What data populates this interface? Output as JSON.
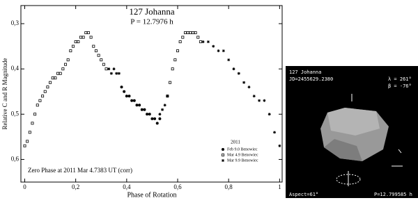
{
  "chart_data": {
    "type": "scatter",
    "title": "127 Johanna",
    "subtitle": "P = 12.7976 h",
    "x_label": "Phase of Rotation",
    "y_label": "Relative C and R Magnitude",
    "annotation": "Zero Phase at 2011 Mar 4.7383 UT (corr)",
    "legend_title": "2011",
    "legend_position": "lower right",
    "invert_y": true,
    "xlim": [
      -0.015,
      1.01
    ],
    "ylim": [
      0.26,
      0.65
    ],
    "xticks": [
      0,
      {
        "value": 0.2,
        "label": "0,2"
      },
      {
        "value": 0.4,
        "label": "0,4"
      },
      {
        "value": 0.6,
        "label": "0,6"
      },
      {
        "value": 0.8,
        "label": "0,8"
      },
      1
    ],
    "yticks": [
      {
        "value": 0.3,
        "label": "0,3"
      },
      {
        "value": 0.4,
        "label": "0,4"
      },
      {
        "value": 0.5,
        "label": "0,5"
      },
      {
        "value": 0.6,
        "label": "0,6"
      }
    ],
    "series": [
      {
        "name": "Feb 9.0 Benowiec",
        "marker": "circle",
        "color": "#000000",
        "x": [
          0.38,
          0.39,
          0.4,
          0.41,
          0.42,
          0.43,
          0.44,
          0.45,
          0.46,
          0.47,
          0.48,
          0.49,
          0.5,
          0.51,
          0.52,
          0.53
        ],
        "values": [
          0.44,
          0.45,
          0.46,
          0.46,
          0.47,
          0.47,
          0.48,
          0.48,
          0.49,
          0.49,
          0.5,
          0.5,
          0.51,
          0.51,
          0.52,
          0.51
        ]
      },
      {
        "name": "Mar 4.9 Benowiec",
        "marker": "square",
        "color": "#000000",
        "x": [
          0.0,
          0.01,
          0.02,
          0.03,
          0.04,
          0.05,
          0.06,
          0.07,
          0.08,
          0.09,
          0.1,
          0.11,
          0.12,
          0.13,
          0.14,
          0.15,
          0.16,
          0.17,
          0.18,
          0.19,
          0.2,
          0.21,
          0.22,
          0.23,
          0.24,
          0.25,
          0.26,
          0.27,
          0.28,
          0.29,
          0.3,
          0.31,
          0.32,
          0.56,
          0.57,
          0.58,
          0.59,
          0.6,
          0.61,
          0.62,
          0.63,
          0.64,
          0.65,
          0.66,
          0.67,
          0.68,
          0.69
        ],
        "values": [
          0.57,
          0.56,
          0.54,
          0.52,
          0.5,
          0.48,
          0.47,
          0.46,
          0.45,
          0.44,
          0.43,
          0.42,
          0.42,
          0.41,
          0.41,
          0.4,
          0.39,
          0.38,
          0.36,
          0.35,
          0.34,
          0.34,
          0.33,
          0.33,
          0.32,
          0.32,
          0.33,
          0.35,
          0.36,
          0.37,
          0.38,
          0.39,
          0.4,
          0.46,
          0.43,
          0.4,
          0.38,
          0.36,
          0.34,
          0.33,
          0.32,
          0.32,
          0.32,
          0.32,
          0.32,
          0.33,
          0.34
        ]
      },
      {
        "name": "Mar 9.9 Benowiec",
        "marker": "asterisk",
        "color": "#000000",
        "x": [
          0.33,
          0.34,
          0.35,
          0.36,
          0.37,
          0.53,
          0.54,
          0.55,
          0.56,
          0.7,
          0.72,
          0.74,
          0.76,
          0.78,
          0.8,
          0.82,
          0.84,
          0.86,
          0.88,
          0.9,
          0.92,
          0.94,
          0.96,
          0.98,
          1.0
        ],
        "values": [
          0.4,
          0.41,
          0.4,
          0.41,
          0.41,
          0.5,
          0.49,
          0.48,
          0.46,
          0.34,
          0.34,
          0.35,
          0.36,
          0.36,
          0.38,
          0.4,
          0.41,
          0.43,
          0.44,
          0.46,
          0.47,
          0.47,
          0.5,
          0.54,
          0.57
        ]
      }
    ]
  },
  "model_panel": {
    "name": "127 Johanna",
    "jd": "JD=2455629.2380",
    "lambda": "λ = 261°",
    "beta": "β = -76°",
    "aspect": "Aspect=61°",
    "period": "P=12.799585 h"
  }
}
